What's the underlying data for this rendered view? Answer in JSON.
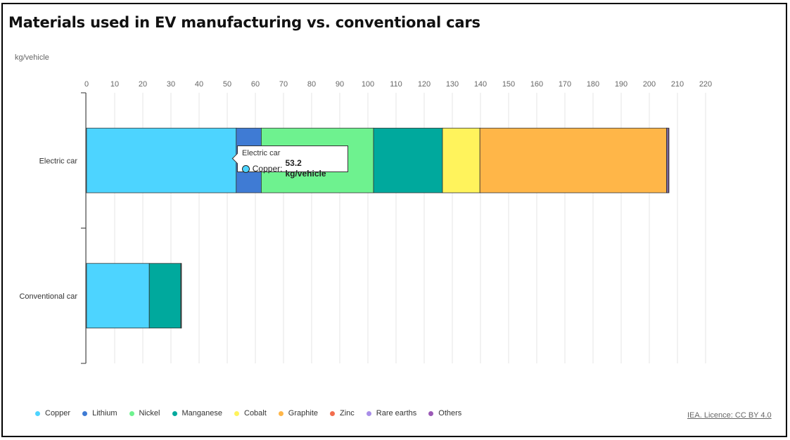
{
  "title": "Materials used in EV manufacturing vs. conventional cars",
  "unit_label": "kg/vehicle",
  "credit": "IEA. Licence: CC BY 4.0",
  "colors": {
    "Copper": "#4dd4ff",
    "Lithium": "#3f7bd4",
    "Nickel": "#6ef28f",
    "Manganese": "#00a99d",
    "Cobalt": "#fff35c",
    "Graphite": "#ffb648",
    "Zinc": "#f26d4d",
    "Rare earths": "#a98ee8",
    "Others": "#9b59b6"
  },
  "tooltip": {
    "category": "Electric car",
    "series": "Copper",
    "value_text": "53.2 kg/vehicle"
  },
  "chart_data": {
    "type": "bar",
    "orientation": "horizontal",
    "stacked": true,
    "categories": [
      "Electric car",
      "Conventional car"
    ],
    "xlim": [
      0,
      220
    ],
    "xticks": [
      0,
      10,
      20,
      30,
      40,
      50,
      60,
      70,
      80,
      90,
      100,
      110,
      120,
      130,
      140,
      150,
      160,
      170,
      180,
      190,
      200,
      210,
      220
    ],
    "grid": true,
    "legend_position": "bottom-left",
    "series": [
      {
        "name": "Copper",
        "values": [
          53.2,
          22.3
        ]
      },
      {
        "name": "Lithium",
        "values": [
          8.9,
          0
        ]
      },
      {
        "name": "Nickel",
        "values": [
          39.9,
          0
        ]
      },
      {
        "name": "Manganese",
        "values": [
          24.5,
          11.2
        ]
      },
      {
        "name": "Cobalt",
        "values": [
          13.3,
          0
        ]
      },
      {
        "name": "Graphite",
        "values": [
          66.3,
          0
        ]
      },
      {
        "name": "Zinc",
        "values": [
          0.1,
          0.1
        ]
      },
      {
        "name": "Rare earths",
        "values": [
          0.5,
          0
        ]
      },
      {
        "name": "Others",
        "values": [
          0.3,
          0.1
        ]
      }
    ]
  }
}
